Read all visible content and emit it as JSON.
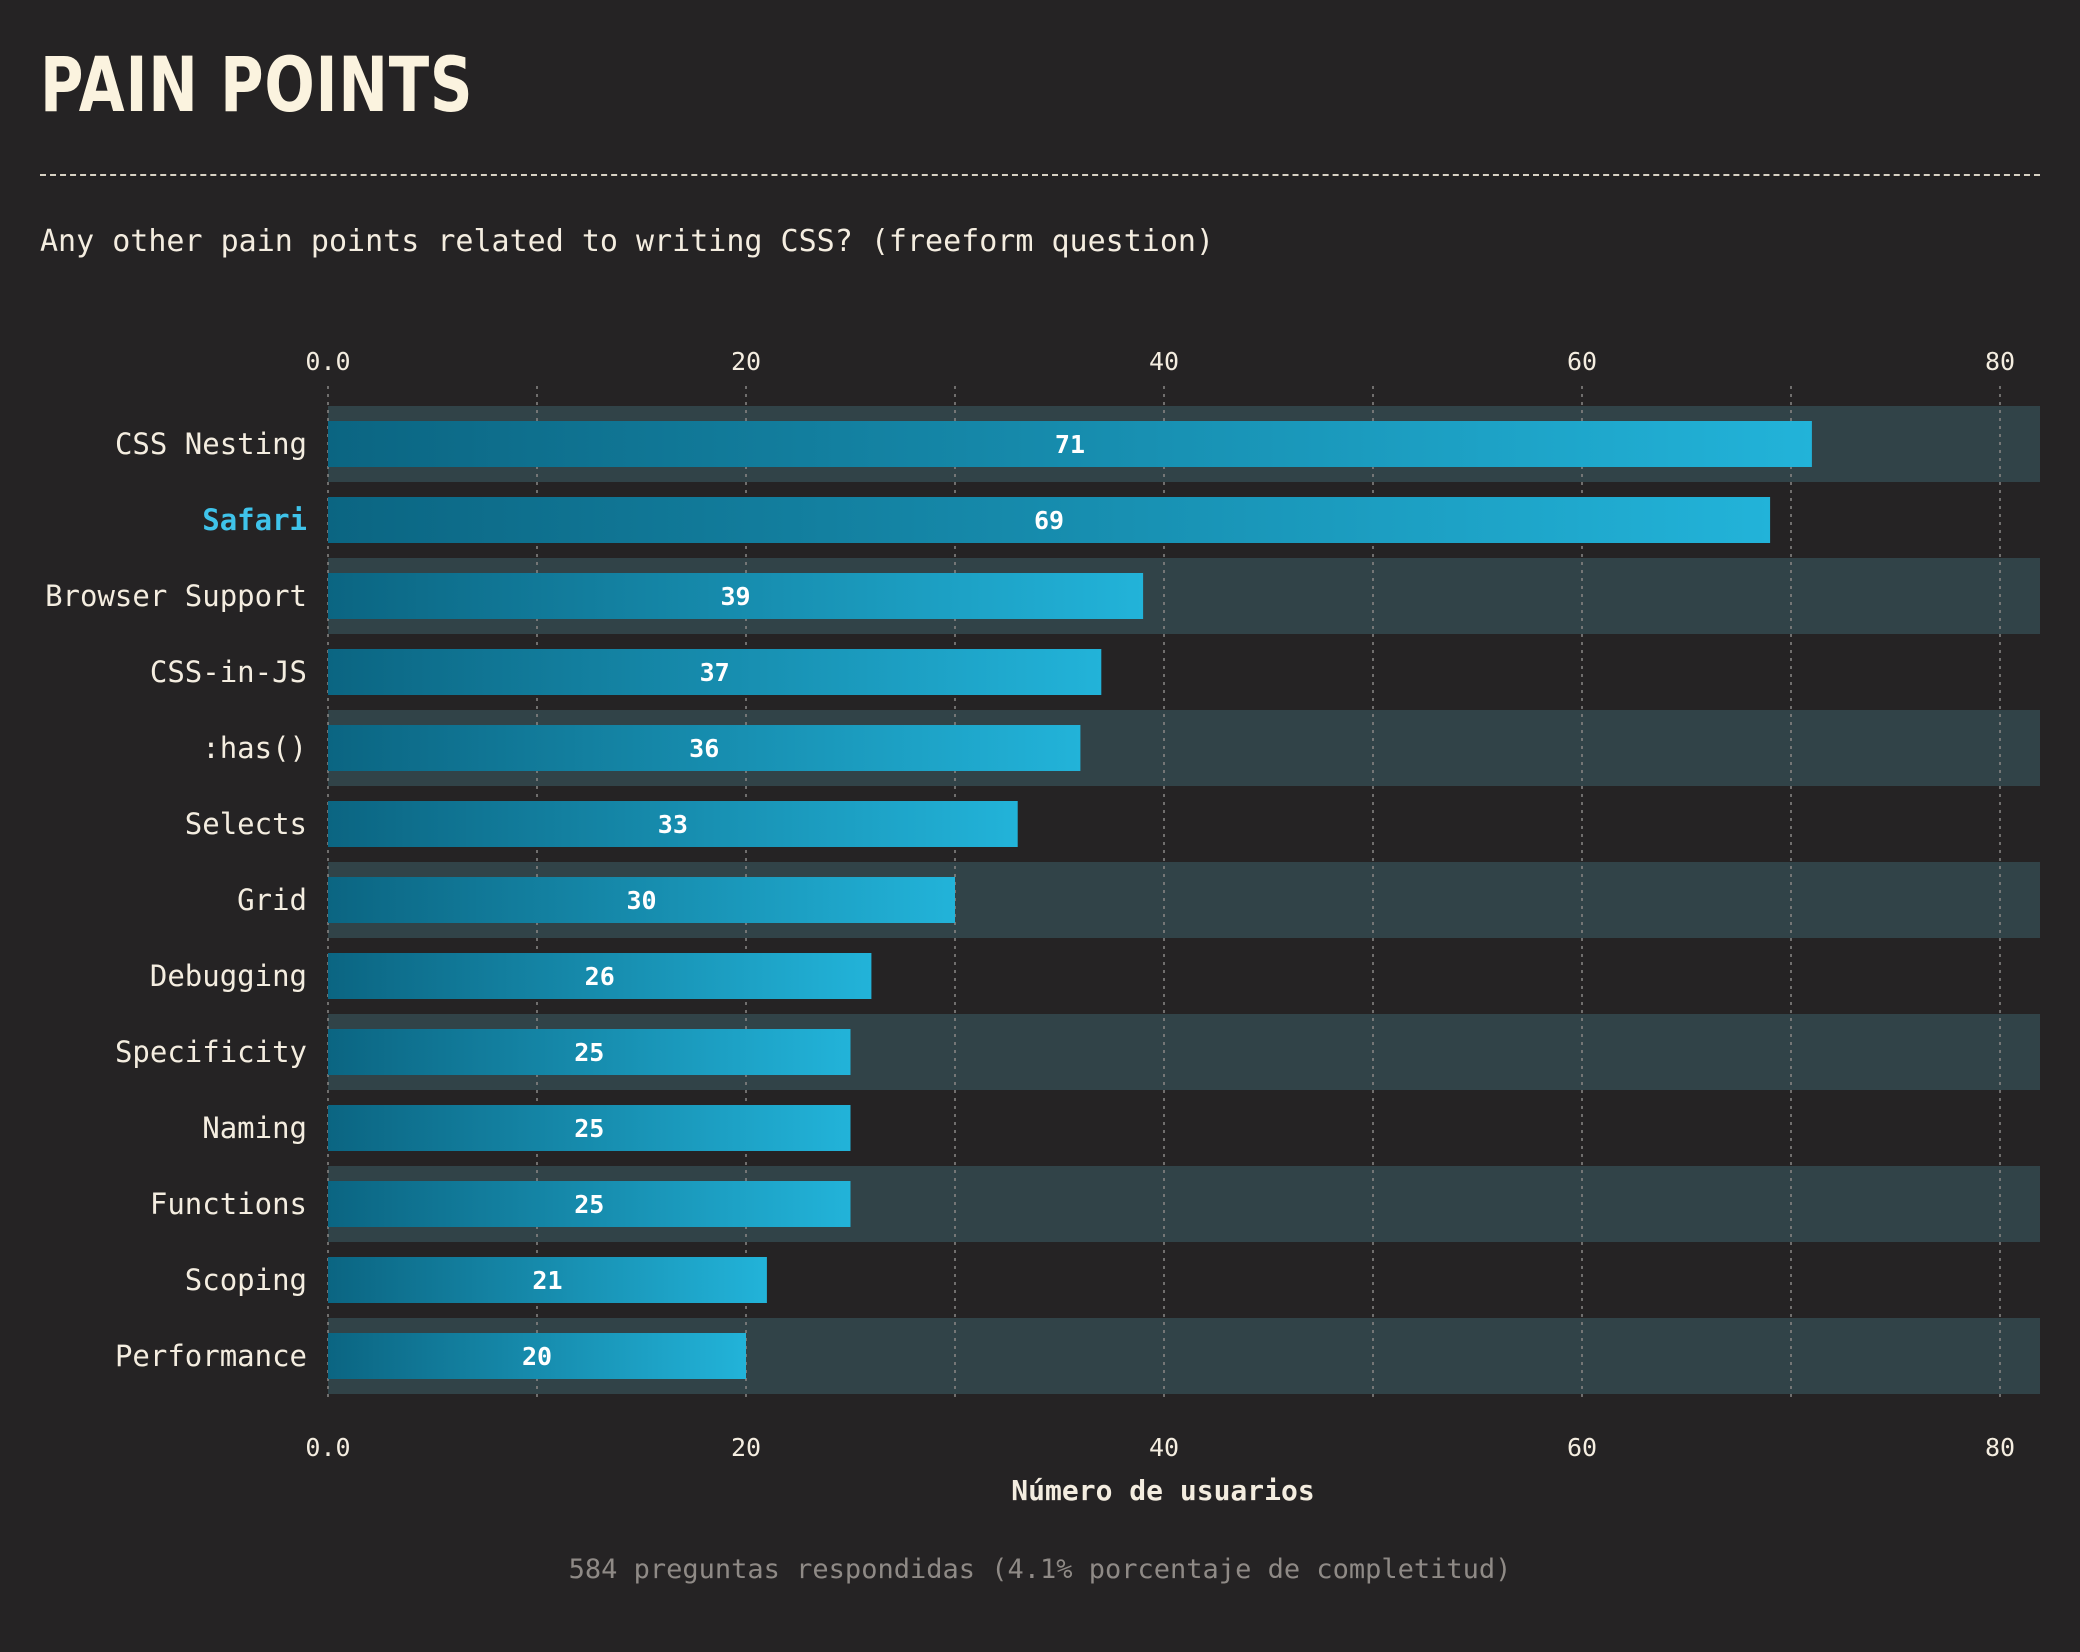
{
  "header": {
    "title": "PAIN POINTS",
    "question": "Any other pain points related to writing CSS? (freeform question)"
  },
  "chart_data": {
    "type": "bar",
    "orientation": "horizontal",
    "categories": [
      "CSS Nesting",
      "Safari",
      "Browser Support",
      "CSS-in-JS",
      ":has()",
      "Selects",
      "Grid",
      "Debugging",
      "Specificity",
      "Naming",
      "Functions",
      "Scoping",
      "Performance"
    ],
    "values": [
      71,
      69,
      39,
      37,
      36,
      33,
      30,
      26,
      25,
      25,
      25,
      21,
      20
    ],
    "highlighted_category": "Safari",
    "xlabel": "Número de usuarios",
    "xlim": [
      0,
      82
    ],
    "ticks": [
      0,
      20,
      40,
      60,
      80
    ],
    "tick_labels": [
      "0.0",
      "20",
      "40",
      "60",
      "80"
    ],
    "minor_gridlines": [
      10,
      30,
      50,
      70
    ],
    "grid": true,
    "axis_labels_top_and_bottom": true,
    "colors": {
      "bar_start": "#0b6582",
      "bar_end": "#22b3d9",
      "band": "#314348",
      "highlight_label": "#3fc3ea",
      "text": "#f4ede0"
    }
  },
  "footer": {
    "note": "584 preguntas respondidas (4.1% porcentaje de completitud)"
  }
}
